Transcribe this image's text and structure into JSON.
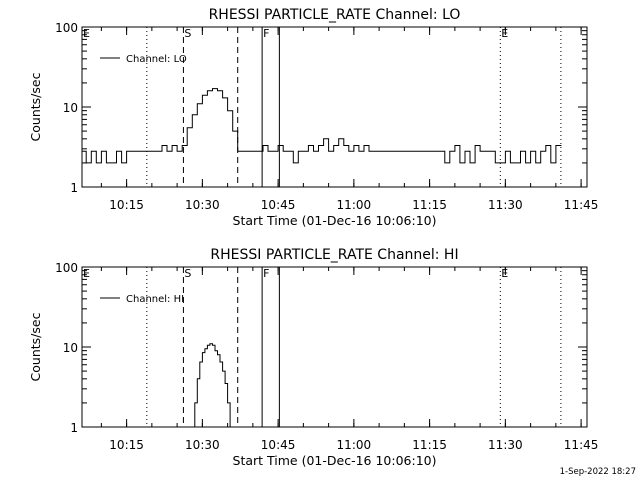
{
  "chart_data": [
    {
      "type": "line",
      "title": "RHESSI PARTICLE_RATE Channel: LO",
      "xlabel": "Start Time (01-Dec-16 10:06:10)",
      "ylabel": "Counts/sec",
      "yscale": "log",
      "ylim": [
        1,
        100
      ],
      "xlim": [
        "10:06:10",
        "11:46:10"
      ],
      "xticks": [
        "10:15",
        "10:30",
        "10:45",
        "11:00",
        "11:15",
        "11:30",
        "11:45"
      ],
      "yticks": [
        "1",
        "10",
        "100"
      ],
      "grid": false,
      "legend": "top-left",
      "series": [
        {
          "name": "Channel: LO",
          "x": [
            "10:06:10",
            "10:07:00",
            "10:08:00",
            "10:09:00",
            "10:10:00",
            "10:11:00",
            "10:12:00",
            "10:13:00",
            "10:14:00",
            "10:15:00",
            "10:16:00",
            "10:17:00",
            "10:18:00",
            "10:19:00",
            "10:20:00",
            "10:21:00",
            "10:22:00",
            "10:23:00",
            "10:24:00",
            "10:25:00",
            "10:26:00",
            "10:27:00",
            "10:28:00",
            "10:29:00",
            "10:30:00",
            "10:31:00",
            "10:32:00",
            "10:33:00",
            "10:34:00",
            "10:35:00",
            "10:36:00",
            "10:37:00",
            "10:38:00",
            "10:39:00",
            "10:40:00",
            "10:41:00",
            "10:42:00",
            "10:43:00",
            "10:44:00",
            "10:45:00",
            "10:46:00",
            "10:47:00",
            "10:48:00",
            "10:49:00",
            "10:50:00",
            "10:51:00",
            "10:52:00",
            "10:53:00",
            "10:54:00",
            "10:55:00",
            "10:56:00",
            "10:57:00",
            "10:58:00",
            "10:59:00",
            "11:00:00",
            "11:01:00",
            "11:02:00",
            "11:03:00",
            "11:04:00",
            "11:05:00",
            "11:06:00",
            "11:07:00",
            "11:08:00",
            "11:09:00",
            "11:10:00",
            "11:11:00",
            "11:12:00",
            "11:13:00",
            "11:14:00",
            "11:15:00",
            "11:16:00",
            "11:17:00",
            "11:18:00",
            "11:19:00",
            "11:20:00",
            "11:21:00",
            "11:22:00",
            "11:23:00",
            "11:24:00",
            "11:25:00",
            "11:26:00",
            "11:27:00",
            "11:28:00",
            "11:29:00",
            "11:30:00",
            "11:31:00",
            "11:32:00",
            "11:33:00",
            "11:34:00",
            "11:35:00",
            "11:36:00",
            "11:37:00",
            "11:38:00",
            "11:39:00",
            "11:40:00",
            "11:40:30"
          ],
          "values": [
            2.8,
            2.0,
            2.8,
            2.0,
            2.8,
            2.0,
            2.0,
            2.8,
            2.0,
            2.8,
            2.8,
            2.8,
            2.8,
            2.8,
            2.8,
            2.8,
            3.3,
            2.8,
            3.3,
            2.8,
            3.3,
            5.5,
            8,
            11,
            14,
            16,
            17,
            16,
            13,
            9,
            5,
            2.8,
            2.8,
            2.8,
            2.8,
            2.8,
            3.3,
            2.8,
            2.8,
            3.3,
            2.8,
            2.8,
            2.0,
            2.8,
            2.8,
            3.3,
            2.8,
            3.3,
            4.0,
            2.8,
            3.3,
            4.0,
            3.3,
            2.8,
            3.3,
            2.8,
            3.3,
            2.8,
            2.8,
            2.8,
            2.8,
            2.8,
            2.8,
            2.8,
            2.8,
            2.8,
            2.8,
            2.8,
            2.8,
            2.8,
            2.8,
            2.8,
            2.0,
            2.8,
            3.3,
            2.0,
            2.8,
            2.0,
            3.3,
            2.8,
            2.8,
            2.8,
            2.0,
            2.0,
            2.8,
            2.0,
            2.0,
            2.8,
            2.0,
            2.8,
            2.0,
            2.8,
            3.3,
            2.0,
            3.3,
            3.3
          ]
        }
      ],
      "markers": [
        {
          "label": "E",
          "time": "10:06:10",
          "style": "dotted"
        },
        {
          "label": "",
          "time": "10:19:00",
          "style": "dotted"
        },
        {
          "label": "S",
          "time": "10:26:15",
          "style": "dashed"
        },
        {
          "label": "",
          "time": "10:37:00",
          "style": "dashed"
        },
        {
          "label": "F",
          "time": "10:41:50",
          "style": "solid"
        },
        {
          "label": "",
          "time": "10:45:15",
          "style": "solid"
        },
        {
          "label": "E",
          "time": "11:29:00",
          "style": "dotted"
        },
        {
          "label": "",
          "time": "11:41:00",
          "style": "dotted"
        }
      ]
    },
    {
      "type": "line",
      "title": "RHESSI PARTICLE_RATE Channel: HI",
      "xlabel": "Start Time (01-Dec-16 10:06:10)",
      "ylabel": "Counts/sec",
      "yscale": "log",
      "ylim": [
        1,
        100
      ],
      "xlim": [
        "10:06:10",
        "11:46:10"
      ],
      "xticks": [
        "10:15",
        "10:30",
        "10:45",
        "11:00",
        "11:15",
        "11:30",
        "11:45"
      ],
      "yticks": [
        "1",
        "10",
        "100"
      ],
      "grid": false,
      "legend": "top-left",
      "series": [
        {
          "name": "Channel: HI",
          "x": [
            "10:27:50",
            "10:28:30",
            "10:29:00",
            "10:29:30",
            "10:30:00",
            "10:30:30",
            "10:31:00",
            "10:31:30",
            "10:32:00",
            "10:32:30",
            "10:33:00",
            "10:33:30",
            "10:34:00",
            "10:34:30",
            "10:35:00",
            "10:35:30"
          ],
          "values": [
            1.0,
            2.0,
            4.0,
            6.5,
            8.5,
            9.5,
            10.5,
            11,
            10.5,
            9,
            8,
            6.5,
            5,
            3.5,
            2,
            1.0
          ]
        }
      ],
      "markers": [
        {
          "label": "E",
          "time": "10:06:10",
          "style": "dotted"
        },
        {
          "label": "",
          "time": "10:19:00",
          "style": "dotted"
        },
        {
          "label": "S",
          "time": "10:26:15",
          "style": "dashed"
        },
        {
          "label": "",
          "time": "10:37:00",
          "style": "dashed"
        },
        {
          "label": "F",
          "time": "10:41:50",
          "style": "solid"
        },
        {
          "label": "",
          "time": "10:45:15",
          "style": "solid"
        },
        {
          "label": "E",
          "time": "11:29:00",
          "style": "dotted"
        },
        {
          "label": "",
          "time": "11:41:00",
          "style": "dotted"
        }
      ]
    }
  ],
  "footer": "1-Sep-2022 18:27"
}
